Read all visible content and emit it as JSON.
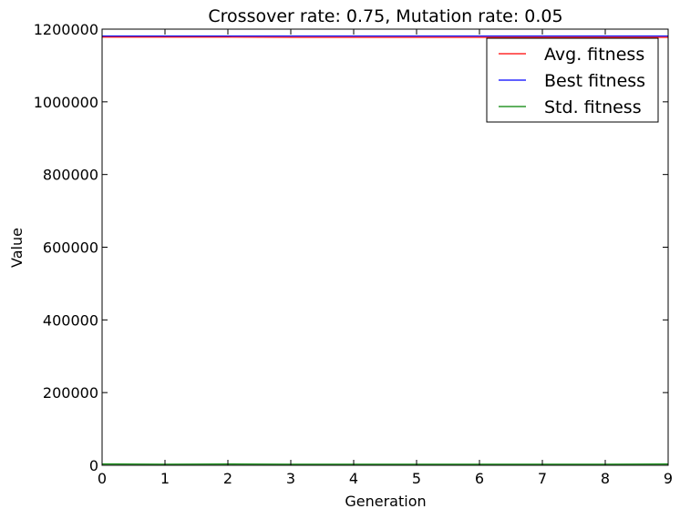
{
  "chart_data": {
    "type": "line",
    "title": "Crossover rate: 0.75, Mutation rate: 0.05",
    "xlabel": "Generation",
    "ylabel": "Value",
    "xlim": [
      0,
      9
    ],
    "ylim": [
      0,
      1200000
    ],
    "x": [
      0,
      1,
      2,
      3,
      4,
      5,
      6,
      7,
      8,
      9
    ],
    "xticks": [
      "0",
      "1",
      "2",
      "3",
      "4",
      "5",
      "6",
      "7",
      "8",
      "9"
    ],
    "yticks": [
      "0",
      "200000",
      "400000",
      "600000",
      "800000",
      "1000000",
      "1200000"
    ],
    "ytick_values": [
      0,
      200000,
      400000,
      600000,
      800000,
      1000000,
      1200000
    ],
    "grid": false,
    "legend_position": "top-right",
    "series": [
      {
        "name": "Avg. fitness",
        "color": "#ff0000",
        "values": [
          1178000,
          1178000,
          1178000,
          1177500,
          1177500,
          1177500,
          1177500,
          1177500,
          1177500,
          1177500
        ]
      },
      {
        "name": "Best fitness",
        "color": "#0000ff",
        "values": [
          1181000,
          1181000,
          1181000,
          1181000,
          1181000,
          1181000,
          1181000,
          1181000,
          1181000,
          1181000
        ]
      },
      {
        "name": "Std. fitness",
        "color": "#008000",
        "values": [
          3500,
          3000,
          3500,
          3000,
          3000,
          3000,
          3000,
          3000,
          3000,
          3500
        ]
      }
    ]
  }
}
